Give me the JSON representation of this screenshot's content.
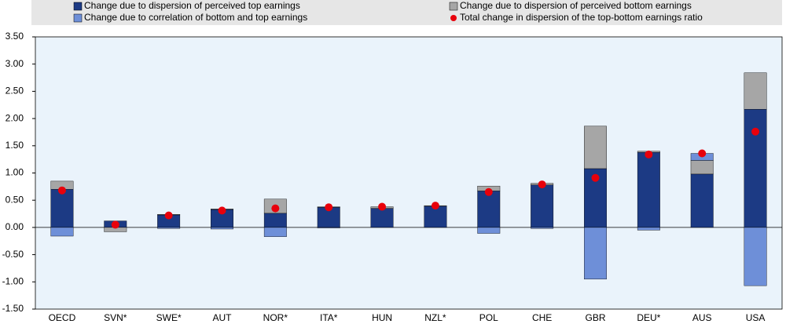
{
  "chart_data": {
    "type": "stacked-bar",
    "categories": [
      "OECD",
      "SVN*",
      "SWE*",
      "AUT",
      "NOR*",
      "ITA*",
      "HUN",
      "NZL*",
      "POL",
      "CHE",
      "GBR",
      "DEU*",
      "AUS",
      "USA"
    ],
    "series": [
      {
        "name": "Change due to dispersion of perceived top earnings",
        "color": "#1c3a84",
        "values": [
          0.7,
          0.12,
          0.23,
          0.33,
          0.26,
          0.37,
          0.35,
          0.39,
          0.67,
          0.78,
          1.08,
          1.38,
          0.98,
          2.17
        ]
      },
      {
        "name": "Change due to dispersion of perceived bottom earnings",
        "color": "#a6a6a6",
        "values": [
          0.15,
          -0.08,
          0.01,
          0.01,
          0.26,
          0.01,
          0.03,
          0.01,
          0.09,
          0.03,
          0.78,
          0.02,
          0.25,
          0.67
        ]
      },
      {
        "name": "Change due to correlation of bottom and top earnings",
        "color": "#6e8fd8",
        "values": [
          -0.16,
          0,
          -0.02,
          -0.03,
          -0.17,
          -0.01,
          0,
          0,
          -0.11,
          -0.02,
          -0.95,
          -0.05,
          0.13,
          -1.07
        ]
      },
      {
        "name": "Total change in dispersion of the top-bottom earnings ratio",
        "color": "#e8000b",
        "kind": "dot",
        "values": [
          0.68,
          0.05,
          0.22,
          0.31,
          0.35,
          0.37,
          0.38,
          0.4,
          0.65,
          0.79,
          0.91,
          1.34,
          1.36,
          1.76
        ]
      }
    ],
    "ylim": [
      -1.5,
      3.5
    ],
    "yticks": [
      {
        "value": -1.5,
        "label": "-1.50"
      },
      {
        "value": -1,
        "label": "-1.00"
      },
      {
        "value": -0.5,
        "label": "-0.50"
      },
      {
        "value": 0,
        "label": "0.00"
      },
      {
        "value": 0.5,
        "label": "0.50"
      },
      {
        "value": 1,
        "label": "1.00"
      },
      {
        "value": 1.5,
        "label": "1.50"
      },
      {
        "value": 2,
        "label": "2.00"
      },
      {
        "value": 2.5,
        "label": "2.50"
      },
      {
        "value": 3,
        "label": "3.00"
      },
      {
        "value": 3.5,
        "label": "3.50"
      }
    ],
    "grid": false
  }
}
